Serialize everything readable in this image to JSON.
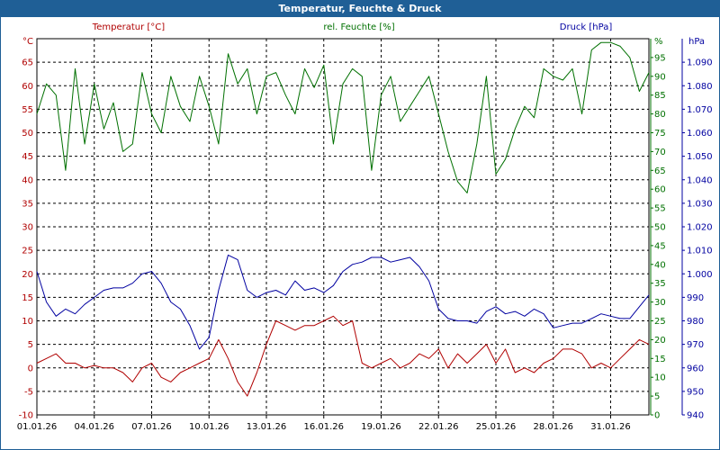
{
  "window": {
    "title": "Temperatur, Feuchte & Druck"
  },
  "colors": {
    "temperature": "#b00000",
    "humidity": "#007000",
    "pressure": "#0000a0",
    "titlebar": "#1f5f96"
  },
  "chart_data": {
    "type": "line",
    "title": "Temperatur, Feuchte & Druck",
    "x_labels": [
      "01.01.26",
      "04.01.26",
      "07.01.26",
      "10.01.26",
      "13.01.26",
      "16.01.26",
      "19.01.26",
      "22.01.26",
      "25.01.26",
      "28.01.26",
      "31.01.26"
    ],
    "x_range_days": [
      0,
      32
    ],
    "axes": {
      "temperature": {
        "title": "Temperatur [°C]",
        "unit": "°C",
        "range": [
          -10,
          70
        ],
        "ticks": [
          -10,
          -5,
          0,
          5,
          10,
          15,
          20,
          25,
          30,
          35,
          40,
          45,
          50,
          55,
          60,
          65
        ]
      },
      "humidity": {
        "title": "rel. Feuchte [%]",
        "unit": "%",
        "range": [
          0,
          100
        ],
        "ticks": [
          0,
          5,
          10,
          15,
          20,
          25,
          30,
          35,
          40,
          45,
          50,
          55,
          60,
          65,
          70,
          75,
          80,
          85,
          90,
          95
        ]
      },
      "pressure": {
        "title": "Druck [hPa]",
        "unit": "hPa",
        "range": [
          940,
          1100
        ],
        "ticks": [
          "940",
          "950",
          "960",
          "970",
          "980",
          "990",
          "1.000",
          "1.010",
          "1.020",
          "1.030",
          "1.040",
          "1.050",
          "1.060",
          "1.070",
          "1.080",
          "1.090"
        ]
      }
    },
    "series": [
      {
        "name": "Temperatur [°C]",
        "axis": "temperature",
        "color": "#b00000",
        "x": [
          0,
          0.5,
          1,
          1.5,
          2,
          2.5,
          3,
          3.5,
          4,
          4.5,
          5,
          5.5,
          6,
          6.5,
          7,
          7.5,
          8,
          8.5,
          9,
          9.5,
          10,
          10.5,
          11,
          11.5,
          12,
          12.5,
          13,
          13.5,
          14,
          14.5,
          15,
          15.5,
          16,
          16.5,
          17,
          17.5,
          18,
          18.5,
          19,
          19.5,
          20,
          20.5,
          21,
          21.5,
          22,
          22.5,
          23,
          23.5,
          24,
          24.5,
          25,
          25.5,
          26,
          26.5,
          27,
          27.5,
          28,
          28.5,
          29,
          29.5,
          30,
          30.5,
          31,
          31.5,
          32
        ],
        "values": [
          1,
          2,
          3,
          1,
          1,
          0,
          0.5,
          0,
          0,
          -1,
          -3,
          0,
          1,
          -2,
          -3,
          -1,
          0,
          1,
          2,
          6,
          2,
          -3,
          -6,
          -1,
          5,
          10,
          9,
          8,
          9,
          9,
          10,
          11,
          9,
          10,
          1,
          0,
          1,
          2,
          0,
          1,
          3,
          2,
          4,
          0,
          3,
          1,
          3,
          5,
          1,
          4,
          -1,
          0,
          -1,
          1,
          2,
          4,
          4,
          3,
          0,
          1,
          0,
          2,
          4,
          6,
          5
        ]
      },
      {
        "name": "rel. Feuchte [%]",
        "axis": "humidity",
        "color": "#007000",
        "x": [
          0,
          0.5,
          1,
          1.5,
          2,
          2.5,
          3,
          3.5,
          4,
          4.5,
          5,
          5.5,
          6,
          6.5,
          7,
          7.5,
          8,
          8.5,
          9,
          9.5,
          10,
          10.5,
          11,
          11.5,
          12,
          12.5,
          13,
          13.5,
          14,
          14.5,
          15,
          15.5,
          16,
          16.5,
          17,
          17.5,
          18,
          18.5,
          19,
          19.5,
          20,
          20.5,
          21,
          21.5,
          22,
          22.5,
          23,
          23.5,
          24,
          24.5,
          25,
          25.5,
          26,
          26.5,
          27,
          27.5,
          28,
          28.5,
          29,
          29.5,
          30,
          30.5,
          31,
          31.5,
          32
        ],
        "values": [
          80,
          88,
          85,
          65,
          92,
          72,
          88,
          76,
          83,
          70,
          72,
          91,
          80,
          75,
          90,
          82,
          78,
          90,
          82,
          72,
          96,
          88,
          92,
          80,
          90,
          91,
          85,
          80,
          92,
          87,
          93,
          72,
          88,
          92,
          90,
          65,
          85,
          90,
          78,
          82,
          86,
          90,
          80,
          70,
          62,
          59,
          72,
          90,
          64,
          68,
          76,
          82,
          79,
          92,
          90,
          89,
          92,
          80,
          97,
          99,
          99,
          98,
          95,
          86,
          91
        ]
      },
      {
        "name": "Druck [hPa]",
        "axis": "pressure",
        "color": "#0000a0",
        "x": [
          0,
          0.5,
          1,
          1.5,
          2,
          2.5,
          3,
          3.5,
          4,
          4.5,
          5,
          5.5,
          6,
          6.5,
          7,
          7.5,
          8,
          8.5,
          9,
          9.5,
          10,
          10.5,
          11,
          11.5,
          12,
          12.5,
          13,
          13.5,
          14,
          14.5,
          15,
          15.5,
          16,
          16.5,
          17,
          17.5,
          18,
          18.5,
          19,
          19.5,
          20,
          20.5,
          21,
          21.5,
          22,
          22.5,
          23,
          23.5,
          24,
          24.5,
          25,
          25.5,
          26,
          26.5,
          27,
          27.5,
          28,
          28.5,
          29,
          29.5,
          30,
          30.5,
          31,
          31.5,
          32
        ],
        "values": [
          1001,
          988,
          982,
          985,
          983,
          987,
          990,
          993,
          994,
          994,
          996,
          1000,
          1001,
          996,
          988,
          985,
          978,
          968,
          973,
          993,
          1008,
          1006,
          993,
          990,
          992,
          993,
          991,
          997,
          993,
          994,
          992,
          995,
          1001,
          1004,
          1005,
          1007,
          1007,
          1005,
          1006,
          1007,
          1003,
          997,
          985,
          981,
          980,
          980,
          979,
          984,
          986,
          983,
          984,
          982,
          985,
          983,
          977,
          978,
          979,
          979,
          981,
          983,
          982,
          981,
          981,
          986,
          991
        ]
      }
    ]
  }
}
